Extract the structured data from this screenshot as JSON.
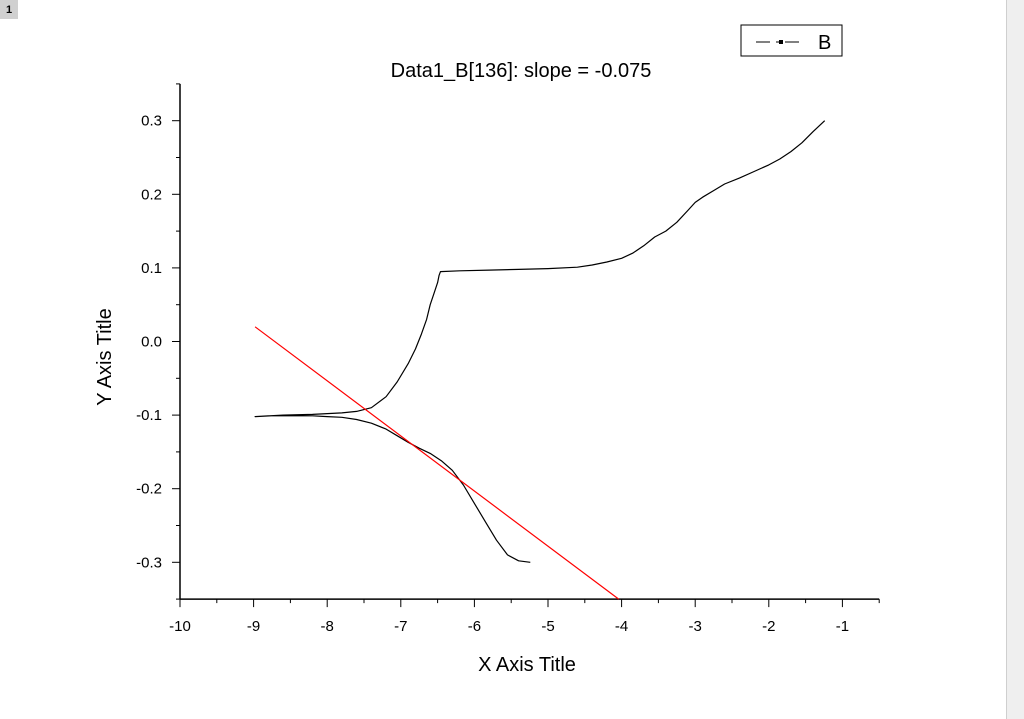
{
  "page": {
    "tab_label": "1"
  },
  "chart_data": {
    "type": "line",
    "title": "Data1_B[136]: slope = -0.075",
    "xlabel": "X Axis Title",
    "ylabel": "Y Axis Title",
    "xlim": [
      -10,
      -0.5
    ],
    "ylim": [
      -0.35,
      0.35
    ],
    "x_ticks": [
      "-10",
      "-9",
      "-8",
      "-7",
      "-6",
      "-5",
      "-4",
      "-3",
      "-2",
      "-1"
    ],
    "y_ticks": [
      "-0.3",
      "-0.2",
      "-0.1",
      "0.0",
      "0.1",
      "0.2",
      "0.3"
    ],
    "legend": {
      "position": "top-right",
      "entries": [
        "B"
      ]
    },
    "grid": false,
    "series": [
      {
        "name": "B",
        "color": "#000000",
        "x": [
          -5.24,
          -5.4,
          -5.55,
          -5.7,
          -5.85,
          -6.0,
          -6.15,
          -6.3,
          -6.45,
          -6.6,
          -6.75,
          -6.9,
          -7.05,
          -7.2,
          -7.4,
          -7.6,
          -7.8,
          -8.0,
          -8.2,
          -8.4,
          -8.6,
          -8.8,
          -8.98,
          -8.6,
          -8.2,
          -7.8,
          -7.6,
          -7.4,
          -7.2,
          -7.05,
          -6.9,
          -6.8,
          -6.72,
          -6.65,
          -6.6,
          -6.55,
          -6.5,
          -6.48,
          -6.46,
          -6.2,
          -5.8,
          -5.4,
          -5.0,
          -4.6,
          -4.4,
          -4.2,
          -4.0,
          -3.85,
          -3.7,
          -3.55,
          -3.4,
          -3.25,
          -3.1,
          -3.0,
          -2.9,
          -2.75,
          -2.6,
          -2.4,
          -2.2,
          -2.0,
          -1.85,
          -1.7,
          -1.55,
          -1.4,
          -1.24
        ],
        "y": [
          -0.3,
          -0.298,
          -0.29,
          -0.27,
          -0.245,
          -0.22,
          -0.195,
          -0.175,
          -0.162,
          -0.152,
          -0.145,
          -0.137,
          -0.128,
          -0.119,
          -0.111,
          -0.106,
          -0.103,
          -0.102,
          -0.101,
          -0.101,
          -0.101,
          -0.101,
          -0.102,
          -0.1,
          -0.099,
          -0.097,
          -0.095,
          -0.09,
          -0.075,
          -0.055,
          -0.03,
          -0.01,
          0.01,
          0.03,
          0.05,
          0.065,
          0.08,
          0.09,
          0.095,
          0.096,
          0.097,
          0.098,
          0.099,
          0.101,
          0.104,
          0.108,
          0.113,
          0.12,
          0.13,
          0.142,
          0.15,
          0.162,
          0.178,
          0.189,
          0.196,
          0.205,
          0.214,
          0.222,
          0.231,
          0.24,
          0.248,
          0.258,
          0.27,
          0.285,
          0.3
        ]
      },
      {
        "color": "#ff0000",
        "x": [
          -8.98,
          -4.04
        ],
        "y": [
          0.02,
          -0.35
        ]
      }
    ]
  }
}
